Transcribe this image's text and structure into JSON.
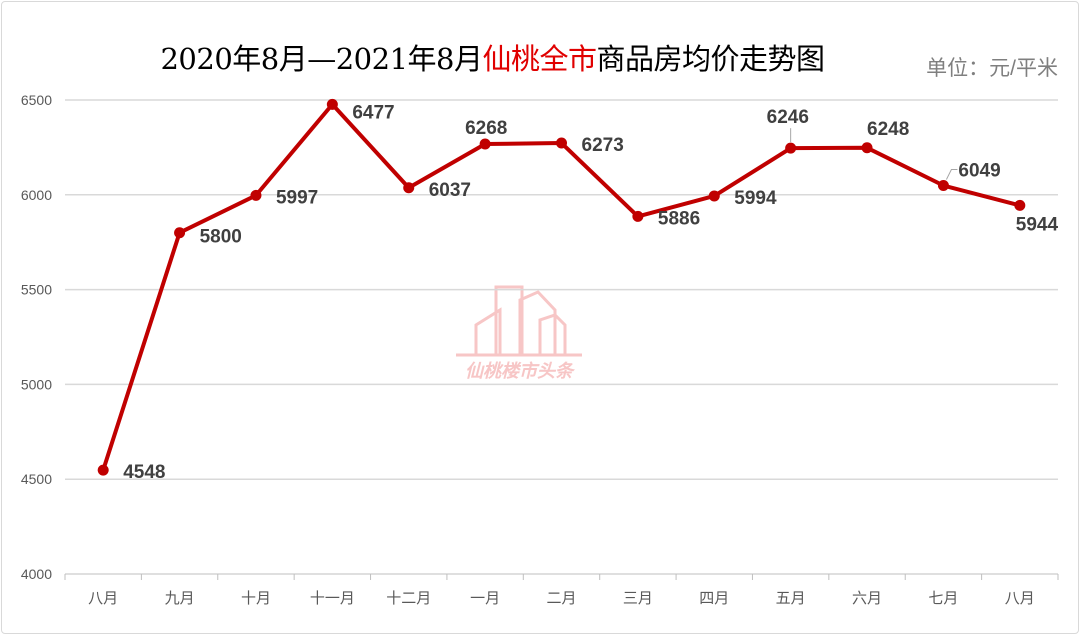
{
  "title": {
    "part1": "2020年8月—2021年8月",
    "highlight": "仙桃全市",
    "part2": "商品房均价走势图"
  },
  "unit": "单位：元/平米",
  "watermark": "仙桃楼市头条",
  "colors": {
    "line": "#c00000",
    "highlight": "#e00000",
    "grid": "#d9d9d9",
    "watermark": "#f7c6c6"
  },
  "chart_data": {
    "type": "line",
    "title": "2020年8月—2021年8月仙桃全市商品房均价走势图",
    "ylabel": "单位：元/平米",
    "categories": [
      "八月",
      "九月",
      "十月",
      "十一月",
      "十二月",
      "一月",
      "二月",
      "三月",
      "四月",
      "五月",
      "六月",
      "七月",
      "八月"
    ],
    "series": [
      {
        "name": "均价",
        "values": [
          4548,
          5800,
          5997,
          6477,
          6037,
          6268,
          6273,
          5886,
          5994,
          6246,
          6248,
          6049,
          5944
        ]
      }
    ],
    "ylim": [
      4000,
      6500
    ],
    "yticks": [
      4000,
      4500,
      5000,
      5500,
      6000,
      6500
    ],
    "grid": true
  }
}
